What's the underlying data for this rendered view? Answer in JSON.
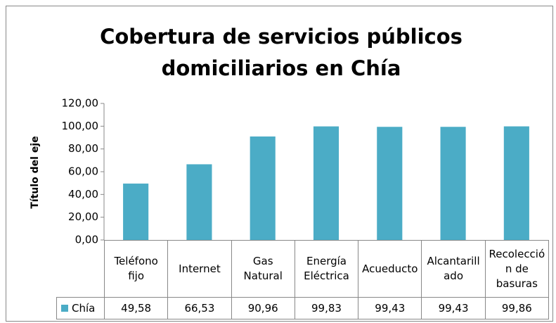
{
  "chart_data": {
    "type": "bar",
    "title": "Cobertura de servicios públicos domiciliarios en Chía",
    "y_axis_label": "Título del eje",
    "categories": [
      "Teléfono fijo",
      "Internet",
      "Gas Natural",
      "Energía Eléctrica",
      "Acueducto",
      "Alcantarillado",
      "Recolección de basuras"
    ],
    "series": [
      {
        "name": "Chía",
        "color": "#4bacc6",
        "values": [
          49.58,
          66.53,
          90.96,
          99.83,
          99.43,
          99.43,
          99.86
        ],
        "value_labels": [
          "49,58",
          "66,53",
          "90,96",
          "99,83",
          "99,43",
          "99,43",
          "99,86"
        ]
      }
    ],
    "ylim": [
      0,
      120
    ],
    "yticks": [
      {
        "value": 0,
        "label": "0,00"
      },
      {
        "value": 20,
        "label": "20,00"
      },
      {
        "value": 40,
        "label": "40,00"
      },
      {
        "value": 60,
        "label": "60,00"
      },
      {
        "value": 80,
        "label": "80,00"
      },
      {
        "value": 100,
        "label": "100,00"
      },
      {
        "value": 120,
        "label": "120,00"
      }
    ],
    "grid": false,
    "data_table": true
  }
}
